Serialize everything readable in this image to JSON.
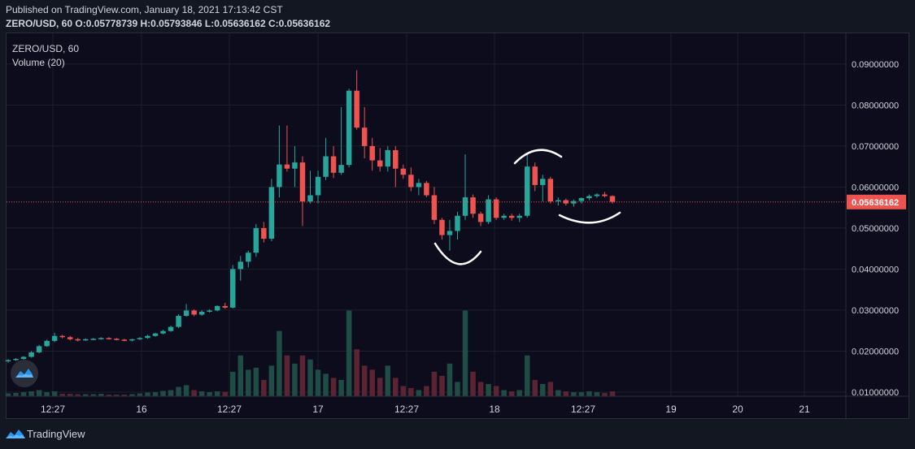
{
  "header": {
    "published": "Published on TradingView.com, January 18, 2021 17:13:42 CST",
    "symbol_interval": "ZERO/USD, 60",
    "open_label": "O:",
    "open": "0.05778739",
    "high_label": "H:",
    "high": "0.05793846",
    "low_label": "L:",
    "low": "0.05636162",
    "close_label": "C:",
    "close": "0.05636162"
  },
  "legend": {
    "symbol": "ZERO/USD, 60",
    "volume": "Volume (20)"
  },
  "footer": {
    "brand": "TradingView"
  },
  "colors": {
    "up": "#26a69a",
    "down": "#ef5350",
    "vol_up": "#1f4d45",
    "vol_down": "#5c2432",
    "background": "#0d0c1d",
    "price_line": "#ef5350"
  },
  "icons": {
    "badge": "tradingview-cloud-icon",
    "footer_logo": "tradingview-logo-icon"
  },
  "chart_data": {
    "type": "candlestick",
    "ylim": [
      0.009,
      0.0975
    ],
    "y_ticks": [
      "0.01000000",
      "0.02000000",
      "0.03000000",
      "0.04000000",
      "0.05000000",
      "0.06000000",
      "0.07000000",
      "0.08000000",
      "0.09000000"
    ],
    "y_tick_values": [
      0.01,
      0.02,
      0.03,
      0.04,
      0.05,
      0.06,
      0.07,
      0.08,
      0.09
    ],
    "x_ticks": [
      "12:27",
      "16",
      "12:27",
      "17",
      "12:27",
      "18",
      "12:27",
      "19",
      "20",
      "21"
    ],
    "last_price_label": "0.05636162",
    "last_price": 0.05636162,
    "candles": [
      {
        "o": 0.0175,
        "h": 0.018,
        "l": 0.0172,
        "c": 0.0178,
        "v": 0.0007
      },
      {
        "o": 0.0178,
        "h": 0.0183,
        "l": 0.0176,
        "c": 0.0181,
        "v": 0.0008
      },
      {
        "o": 0.0181,
        "h": 0.0188,
        "l": 0.0179,
        "c": 0.0186,
        "v": 0.001
      },
      {
        "o": 0.0186,
        "h": 0.02,
        "l": 0.0184,
        "c": 0.0197,
        "v": 0.0012
      },
      {
        "o": 0.0197,
        "h": 0.0215,
        "l": 0.0195,
        "c": 0.0212,
        "v": 0.0015
      },
      {
        "o": 0.0212,
        "h": 0.0228,
        "l": 0.021,
        "c": 0.0225,
        "v": 0.001
      },
      {
        "o": 0.0225,
        "h": 0.0245,
        "l": 0.0222,
        "c": 0.0237,
        "v": 0.0012
      },
      {
        "o": 0.0237,
        "h": 0.024,
        "l": 0.0231,
        "c": 0.0234,
        "v": 0.0006
      },
      {
        "o": 0.0234,
        "h": 0.0237,
        "l": 0.0226,
        "c": 0.0229,
        "v": 0.0006
      },
      {
        "o": 0.0229,
        "h": 0.0232,
        "l": 0.0224,
        "c": 0.0227,
        "v": 0.0005
      },
      {
        "o": 0.0227,
        "h": 0.0231,
        "l": 0.0225,
        "c": 0.0229,
        "v": 0.0005
      },
      {
        "o": 0.0229,
        "h": 0.0232,
        "l": 0.0227,
        "c": 0.023,
        "v": 0.0005
      },
      {
        "o": 0.023,
        "h": 0.0234,
        "l": 0.0228,
        "c": 0.0232,
        "v": 0.0006
      },
      {
        "o": 0.0232,
        "h": 0.0234,
        "l": 0.0228,
        "c": 0.023,
        "v": 0.0004
      },
      {
        "o": 0.023,
        "h": 0.0232,
        "l": 0.0226,
        "c": 0.0228,
        "v": 0.0004
      },
      {
        "o": 0.0228,
        "h": 0.023,
        "l": 0.0224,
        "c": 0.0226,
        "v": 0.0004
      },
      {
        "o": 0.0226,
        "h": 0.023,
        "l": 0.0224,
        "c": 0.0229,
        "v": 0.0005
      },
      {
        "o": 0.0229,
        "h": 0.0234,
        "l": 0.0227,
        "c": 0.0232,
        "v": 0.0007
      },
      {
        "o": 0.0232,
        "h": 0.024,
        "l": 0.023,
        "c": 0.0237,
        "v": 0.0009
      },
      {
        "o": 0.0237,
        "h": 0.0245,
        "l": 0.0235,
        "c": 0.0243,
        "v": 0.001
      },
      {
        "o": 0.0243,
        "h": 0.0252,
        "l": 0.0241,
        "c": 0.0249,
        "v": 0.0013
      },
      {
        "o": 0.0249,
        "h": 0.0262,
        "l": 0.0247,
        "c": 0.0259,
        "v": 0.0015
      },
      {
        "o": 0.0259,
        "h": 0.029,
        "l": 0.0256,
        "c": 0.0286,
        "v": 0.0023
      },
      {
        "o": 0.0286,
        "h": 0.0315,
        "l": 0.0284,
        "c": 0.0299,
        "v": 0.0027
      },
      {
        "o": 0.0299,
        "h": 0.0302,
        "l": 0.0285,
        "c": 0.0289,
        "v": 0.0015
      },
      {
        "o": 0.0289,
        "h": 0.03,
        "l": 0.0286,
        "c": 0.0296,
        "v": 0.0012
      },
      {
        "o": 0.0296,
        "h": 0.0302,
        "l": 0.0294,
        "c": 0.0299,
        "v": 0.001
      },
      {
        "o": 0.0299,
        "h": 0.0312,
        "l": 0.0297,
        "c": 0.031,
        "v": 0.0012
      },
      {
        "o": 0.031,
        "h": 0.0318,
        "l": 0.0303,
        "c": 0.0306,
        "v": 0.0011
      },
      {
        "o": 0.0306,
        "h": 0.041,
        "l": 0.0304,
        "c": 0.04,
        "v": 0.006
      },
      {
        "o": 0.04,
        "h": 0.0432,
        "l": 0.0372,
        "c": 0.0418,
        "v": 0.01
      },
      {
        "o": 0.0418,
        "h": 0.0445,
        "l": 0.0404,
        "c": 0.044,
        "v": 0.0065
      },
      {
        "o": 0.044,
        "h": 0.051,
        "l": 0.043,
        "c": 0.05,
        "v": 0.007
      },
      {
        "o": 0.05,
        "h": 0.0515,
        "l": 0.0465,
        "c": 0.0474,
        "v": 0.004
      },
      {
        "o": 0.0474,
        "h": 0.062,
        "l": 0.0468,
        "c": 0.06,
        "v": 0.0075
      },
      {
        "o": 0.06,
        "h": 0.075,
        "l": 0.0575,
        "c": 0.0655,
        "v": 0.016
      },
      {
        "o": 0.0655,
        "h": 0.075,
        "l": 0.0638,
        "c": 0.0645,
        "v": 0.01
      },
      {
        "o": 0.0645,
        "h": 0.07,
        "l": 0.06,
        "c": 0.066,
        "v": 0.008
      },
      {
        "o": 0.066,
        "h": 0.0675,
        "l": 0.0505,
        "c": 0.0565,
        "v": 0.01
      },
      {
        "o": 0.0565,
        "h": 0.064,
        "l": 0.056,
        "c": 0.058,
        "v": 0.009
      },
      {
        "o": 0.058,
        "h": 0.064,
        "l": 0.056,
        "c": 0.0625,
        "v": 0.0065
      },
      {
        "o": 0.0625,
        "h": 0.072,
        "l": 0.0617,
        "c": 0.0675,
        "v": 0.0055
      },
      {
        "o": 0.0675,
        "h": 0.07,
        "l": 0.0622,
        "c": 0.0635,
        "v": 0.0045
      },
      {
        "o": 0.0635,
        "h": 0.0795,
        "l": 0.063,
        "c": 0.0654,
        "v": 0.004
      },
      {
        "o": 0.0654,
        "h": 0.084,
        "l": 0.0648,
        "c": 0.0835,
        "v": 0.021
      },
      {
        "o": 0.0835,
        "h": 0.0885,
        "l": 0.074,
        "c": 0.0745,
        "v": 0.0115
      },
      {
        "o": 0.0745,
        "h": 0.0795,
        "l": 0.067,
        "c": 0.07,
        "v": 0.0075
      },
      {
        "o": 0.07,
        "h": 0.072,
        "l": 0.064,
        "c": 0.0665,
        "v": 0.0065
      },
      {
        "o": 0.0665,
        "h": 0.0695,
        "l": 0.0638,
        "c": 0.065,
        "v": 0.0045
      },
      {
        "o": 0.065,
        "h": 0.07,
        "l": 0.0638,
        "c": 0.069,
        "v": 0.0075
      },
      {
        "o": 0.069,
        "h": 0.07,
        "l": 0.06,
        "c": 0.0645,
        "v": 0.0045
      },
      {
        "o": 0.0645,
        "h": 0.0655,
        "l": 0.062,
        "c": 0.063,
        "v": 0.0025
      },
      {
        "o": 0.063,
        "h": 0.0648,
        "l": 0.059,
        "c": 0.06,
        "v": 0.002
      },
      {
        "o": 0.06,
        "h": 0.062,
        "l": 0.058,
        "c": 0.061,
        "v": 0.0015
      },
      {
        "o": 0.061,
        "h": 0.0615,
        "l": 0.0575,
        "c": 0.058,
        "v": 0.0025
      },
      {
        "o": 0.058,
        "h": 0.06,
        "l": 0.051,
        "c": 0.052,
        "v": 0.006
      },
      {
        "o": 0.052,
        "h": 0.0525,
        "l": 0.0472,
        "c": 0.0483,
        "v": 0.005
      },
      {
        "o": 0.0483,
        "h": 0.052,
        "l": 0.0445,
        "c": 0.0493,
        "v": 0.008
      },
      {
        "o": 0.0493,
        "h": 0.054,
        "l": 0.0472,
        "c": 0.053,
        "v": 0.0035
      },
      {
        "o": 0.053,
        "h": 0.068,
        "l": 0.052,
        "c": 0.0575,
        "v": 0.021
      },
      {
        "o": 0.0575,
        "h": 0.0582,
        "l": 0.0525,
        "c": 0.0535,
        "v": 0.006
      },
      {
        "o": 0.0535,
        "h": 0.054,
        "l": 0.0505,
        "c": 0.0515,
        "v": 0.0035
      },
      {
        "o": 0.0515,
        "h": 0.058,
        "l": 0.051,
        "c": 0.057,
        "v": 0.003
      },
      {
        "o": 0.057,
        "h": 0.0575,
        "l": 0.052,
        "c": 0.0525,
        "v": 0.0025
      },
      {
        "o": 0.0525,
        "h": 0.0535,
        "l": 0.052,
        "c": 0.053,
        "v": 0.0015
      },
      {
        "o": 0.053,
        "h": 0.0535,
        "l": 0.0518,
        "c": 0.0525,
        "v": 0.0012
      },
      {
        "o": 0.0525,
        "h": 0.0535,
        "l": 0.0515,
        "c": 0.053,
        "v": 0.0015
      },
      {
        "o": 0.053,
        "h": 0.068,
        "l": 0.0525,
        "c": 0.065,
        "v": 0.01
      },
      {
        "o": 0.065,
        "h": 0.066,
        "l": 0.059,
        "c": 0.0605,
        "v": 0.004
      },
      {
        "o": 0.0605,
        "h": 0.063,
        "l": 0.0565,
        "c": 0.062,
        "v": 0.003
      },
      {
        "o": 0.062,
        "h": 0.0625,
        "l": 0.056,
        "c": 0.0565,
        "v": 0.0035
      },
      {
        "o": 0.0565,
        "h": 0.0575,
        "l": 0.0555,
        "c": 0.0568,
        "v": 0.0015
      },
      {
        "o": 0.0568,
        "h": 0.0572,
        "l": 0.0555,
        "c": 0.056,
        "v": 0.0012
      },
      {
        "o": 0.056,
        "h": 0.057,
        "l": 0.0552,
        "c": 0.0566,
        "v": 0.001
      },
      {
        "o": 0.0566,
        "h": 0.0575,
        "l": 0.056,
        "c": 0.0573,
        "v": 0.001
      },
      {
        "o": 0.0573,
        "h": 0.0582,
        "l": 0.0568,
        "c": 0.0578,
        "v": 0.0012
      },
      {
        "o": 0.0578,
        "h": 0.0585,
        "l": 0.0574,
        "c": 0.0582,
        "v": 0.001
      },
      {
        "o": 0.0582,
        "h": 0.0588,
        "l": 0.0575,
        "c": 0.0578,
        "v": 0.0008
      },
      {
        "o": 0.0578,
        "h": 0.058,
        "l": 0.056,
        "c": 0.0564,
        "v": 0.0012
      }
    ]
  }
}
